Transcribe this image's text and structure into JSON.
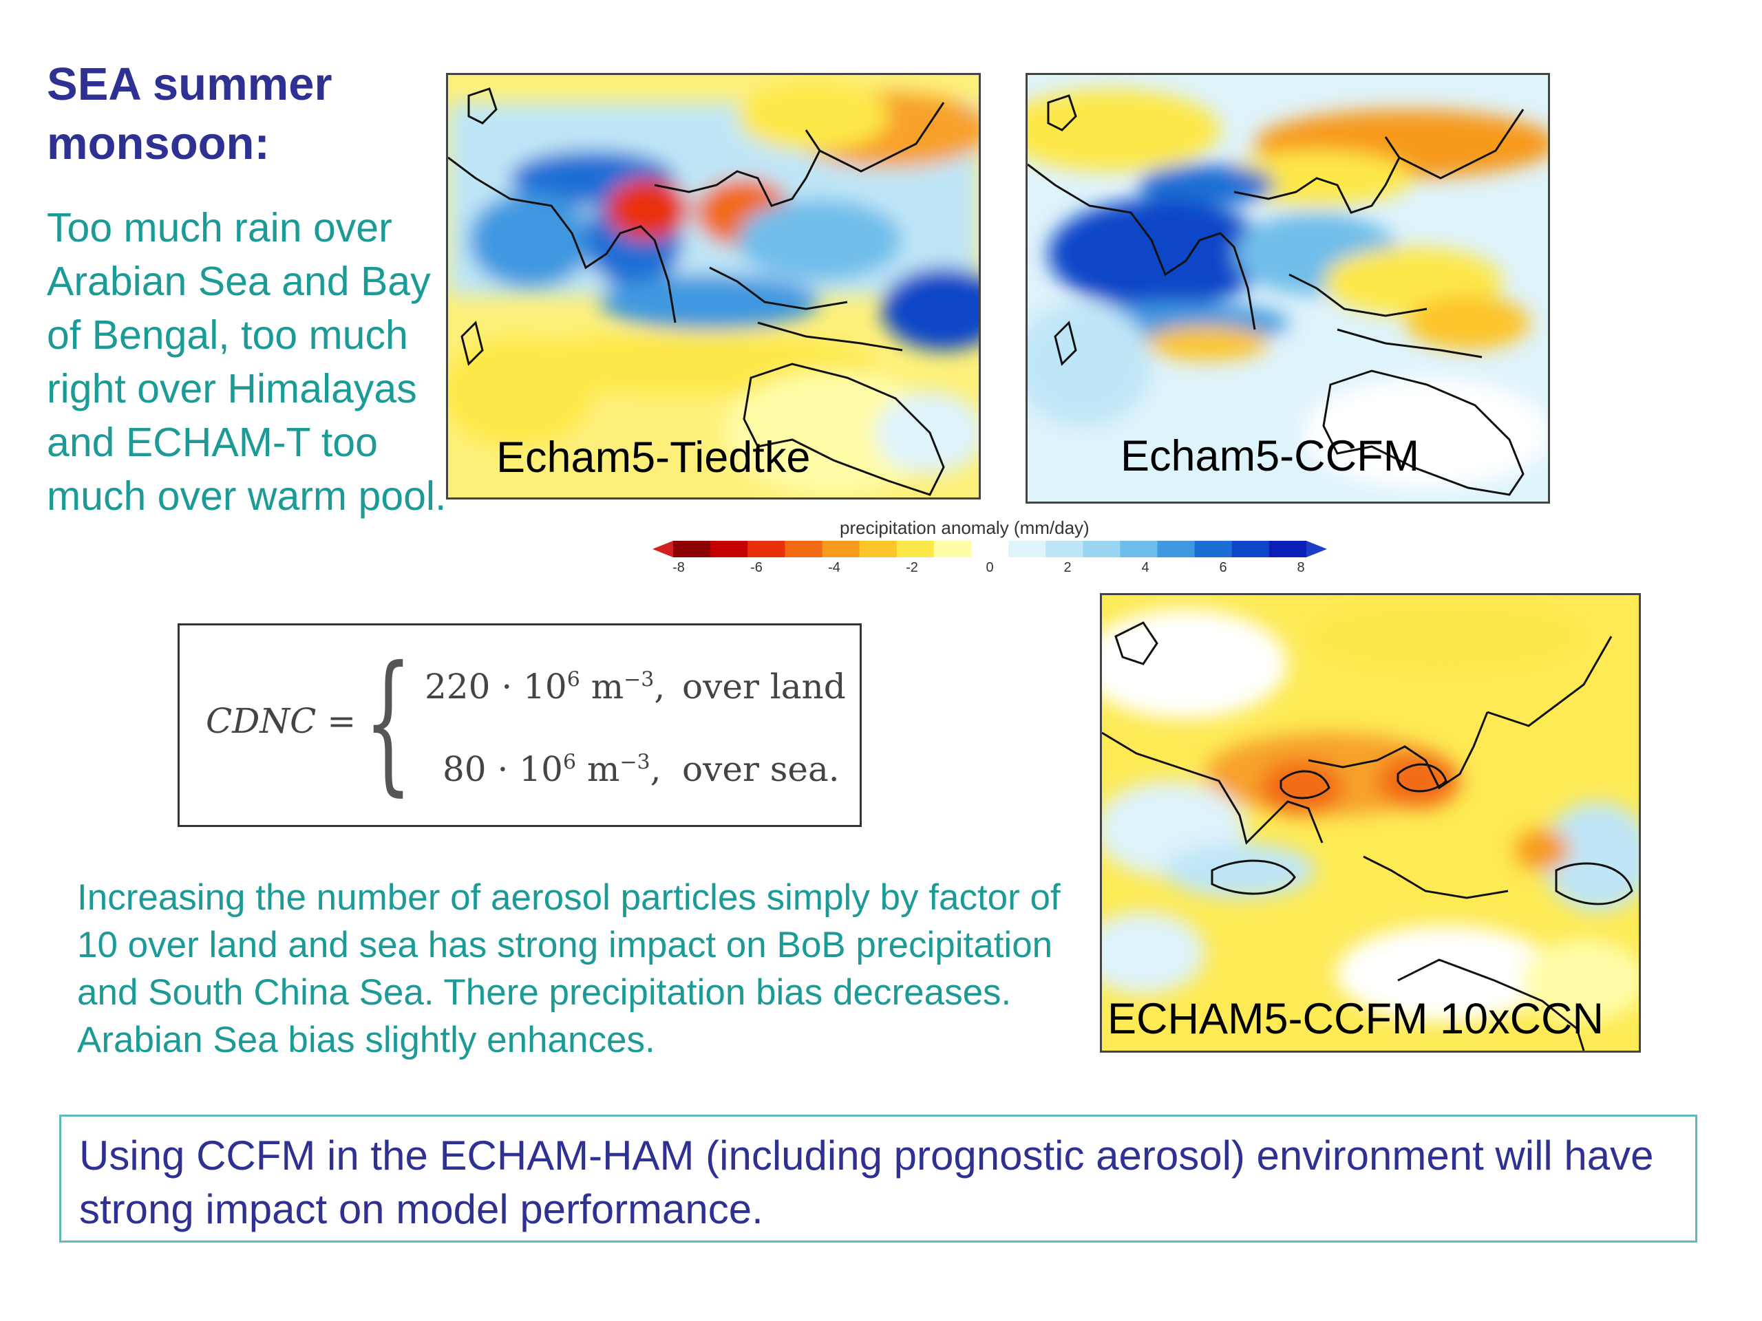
{
  "heading": {
    "line1": "SEA summer",
    "line2": "monsoon:"
  },
  "description": "Too much rain over Arabian Sea and Bay of Bengal, too much right over Himalayas and ECHAM-T too much over warm pool.",
  "maps": {
    "tiedtke_label": "Echam5-Tiedtke",
    "ccfm_label": "Echam5-CCFM",
    "ccn_label": "ECHAM5-CCFM 10xCCN"
  },
  "colorbar": {
    "title": "precipitation anomaly  (mm/day)",
    "ticks": [
      "-8",
      "-6",
      "-4",
      "-2",
      "0",
      "2",
      "4",
      "6",
      "8"
    ],
    "colors": [
      "#8b0000",
      "#c40000",
      "#e8300a",
      "#f26a14",
      "#f79a1e",
      "#fcc52a",
      "#fde84a",
      "#fffca8",
      "#ffffff",
      "#dff3fb",
      "#bfe6f7",
      "#9ad6f2",
      "#6fbdea",
      "#3f98e0",
      "#1c6ed4",
      "#0f46c8",
      "#0a1fb6"
    ]
  },
  "formula": {
    "lhs": "CDNC =",
    "row1_value": "220 · 10",
    "row1_exp": "6",
    "row1_unit": "m",
    "row1_unit_exp": "−3",
    "row1_cond": "over land",
    "row2_value": "80 · 10",
    "row2_exp": "6",
    "row2_unit": "m",
    "row2_unit_exp": "−3",
    "row2_cond": "over sea."
  },
  "effect_text": "Increasing the number of aerosol particles simply by factor of 10 over land and sea has strong impact on BoB precipitation and South China Sea. There precipitation bias decreases. Arabian Sea bias slightly enhances.",
  "conclusion": "Using CCFM in the ECHAM-HAM (including prognostic aerosol) environment will have strong impact on model performance."
}
